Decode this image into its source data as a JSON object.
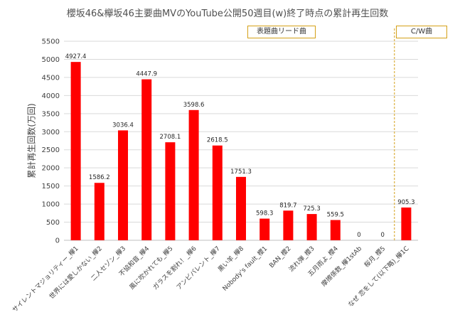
{
  "chart_data": {
    "type": "bar",
    "title": "櫻坂46&欅坂46主要曲MVのYouTube公開50週目(w)終了時点の累計再生回数",
    "ylabel": "累計再生回数(万回)",
    "xlabel": "",
    "ylim": [
      0,
      5500
    ],
    "yticks": [
      0,
      500,
      1000,
      1500,
      2000,
      2500,
      3000,
      3500,
      4000,
      4500,
      5000,
      5500
    ],
    "grid": true,
    "categories": [
      "サイレントマジョリティー_欅1",
      "世界には愛しかない_欅2",
      "二人セゾン_欅3",
      "不協和音_欅4",
      "風に吹かれても_欅5",
      "ガラスを割れ！_欅6",
      "アンビバレント_欅7",
      "黒い羊_欅8",
      "Nobody's fault_櫻1",
      "BAN_櫻2",
      "流れ弾_櫻3",
      "五月雨よ_櫻4",
      "摩擦係数_欅1stAb",
      "桜月_櫻5",
      "なぜ 恋をして(以下略)_欅1C"
    ],
    "values": [
      4927.4,
      1586.2,
      3036.4,
      4447.9,
      2708.1,
      3598.6,
      2618.5,
      1751.3,
      598.3,
      819.7,
      725.3,
      559.5,
      0,
      0,
      905.3
    ],
    "value_labels": [
      "4927.4",
      "1586.2",
      "3036.4",
      "4447.9",
      "2708.1",
      "3598.6",
      "2618.5",
      "1751.3",
      "598.3",
      "819.7",
      "725.3",
      "559.5",
      "0",
      "0",
      "905.3"
    ],
    "bar_color": "#ff0000",
    "annotations": [
      "表題曲リード曲",
      "C/W曲"
    ],
    "separator_color": "#d4a017"
  }
}
